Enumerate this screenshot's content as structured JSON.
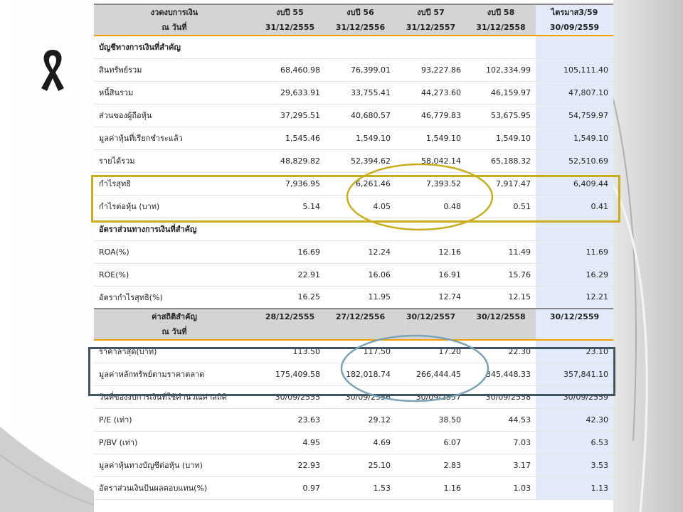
{
  "header_top": {
    "label_line1": "งวดงบการเงิน",
    "label_line2": "ณ วันที่",
    "cols": [
      {
        "line1": "งบปี 55",
        "line2": "31/12/2555"
      },
      {
        "line1": "งบปี 56",
        "line2": "31/12/2556"
      },
      {
        "line1": "งบปี 57",
        "line2": "31/12/2557"
      },
      {
        "line1": "งบปี 58",
        "line2": "31/12/2558"
      },
      {
        "line1": "ไตรมาส3/59",
        "line2": "30/09/2559"
      }
    ]
  },
  "section_financials": "บัญชีทางการเงินที่สำคัญ",
  "financial_rows": [
    {
      "label": "สินทรัพย์รวม",
      "values": [
        "68,460.98",
        "76,399.01",
        "93,227.86",
        "102,334.99",
        "105,111.40"
      ]
    },
    {
      "label": "หนี้สินรวม",
      "values": [
        "29,633.91",
        "33,755.41",
        "44,273.60",
        "46,159.97",
        "47,807.10"
      ]
    },
    {
      "label": "ส่วนของผู้ถือหุ้น",
      "values": [
        "37,295.51",
        "40,680.57",
        "46,779.83",
        "53,675.95",
        "54,759.97"
      ]
    },
    {
      "label": "มูลค่าหุ้นที่เรียกชำระแล้ว",
      "values": [
        "1,545.46",
        "1,549.10",
        "1,549.10",
        "1,549.10",
        "1,549.10"
      ]
    },
    {
      "label": "รายได้รวม",
      "values": [
        "48,829.82",
        "52,394.62",
        "58,042.14",
        "65,188.32",
        "52,510.69"
      ]
    },
    {
      "label": "กำไรสุทธิ",
      "values": [
        "7,936.95",
        "6,261.46",
        "7,393.52",
        "7,917.47",
        "6,409.44"
      ]
    },
    {
      "label": "กำไรต่อหุ้น (บาท)",
      "values": [
        "5.14",
        "4.05",
        "0.48",
        "0.51",
        "0.41"
      ]
    }
  ],
  "section_ratios": "อัตราส่วนทางการเงินที่สำคัญ",
  "ratio_rows": [
    {
      "label": "ROA(%)",
      "values": [
        "16.69",
        "12.24",
        "12.16",
        "11.49",
        "11.69"
      ]
    },
    {
      "label": "ROE(%)",
      "values": [
        "22.91",
        "16.06",
        "16.91",
        "15.76",
        "16.29"
      ]
    },
    {
      "label": "อัตรากำไรสุทธิ(%)",
      "values": [
        "16.25",
        "11.95",
        "12.74",
        "12.15",
        "12.21"
      ]
    }
  ],
  "header_stats": {
    "label_line1": "ค่าสถิติสำคัญ",
    "label_line2": "ณ วันที่",
    "cols": [
      "28/12/2555",
      "27/12/2556",
      "30/12/2557",
      "30/12/2558",
      "30/12/2559"
    ]
  },
  "stat_rows": [
    {
      "label": "ราคาล่าสุด(บาท)",
      "values": [
        "113.50",
        "117.50",
        "17.20",
        "22.30",
        "23.10"
      ]
    },
    {
      "label": "มูลค่าหลักทรัพย์ตามราคาตลาด",
      "values": [
        "175,409.58",
        "182,018.74",
        "266,444.45",
        "345,448.33",
        "357,841.10"
      ]
    },
    {
      "label": "วันที่ของงบการเงินที่ใช้คำนวณค่าสถิติ",
      "values": [
        "30/09/2555",
        "30/09/2556",
        "30/09/2557",
        "30/09/2558",
        "30/09/2559"
      ]
    },
    {
      "label": "P/E (เท่า)",
      "values": [
        "23.63",
        "29.12",
        "38.50",
        "44.53",
        "42.30"
      ]
    },
    {
      "label": "P/BV (เท่า)",
      "values": [
        "4.95",
        "4.69",
        "6.07",
        "7.03",
        "6.53"
      ]
    },
    {
      "label": "มูลค่าหุ้นทางบัญชีต่อหุ้น (บาท)",
      "values": [
        "22.93",
        "25.10",
        "2.83",
        "3.17",
        "3.53"
      ]
    },
    {
      "label": "อัตราส่วนเงินปันผลตอบแทน(%)",
      "values": [
        "0.97",
        "1.53",
        "1.16",
        "1.03",
        "1.13"
      ]
    }
  ],
  "colors": {
    "highlight_column": "#e3ebfb",
    "header_bg": "#d4d4d4",
    "header_accent": "#f2a000",
    "yellow_box": "#c8ad1e",
    "blue_box": "#3f5563",
    "blue_ellipse": "#7aa3b8"
  },
  "icons": {
    "ribbon": "mourning-ribbon-icon"
  }
}
